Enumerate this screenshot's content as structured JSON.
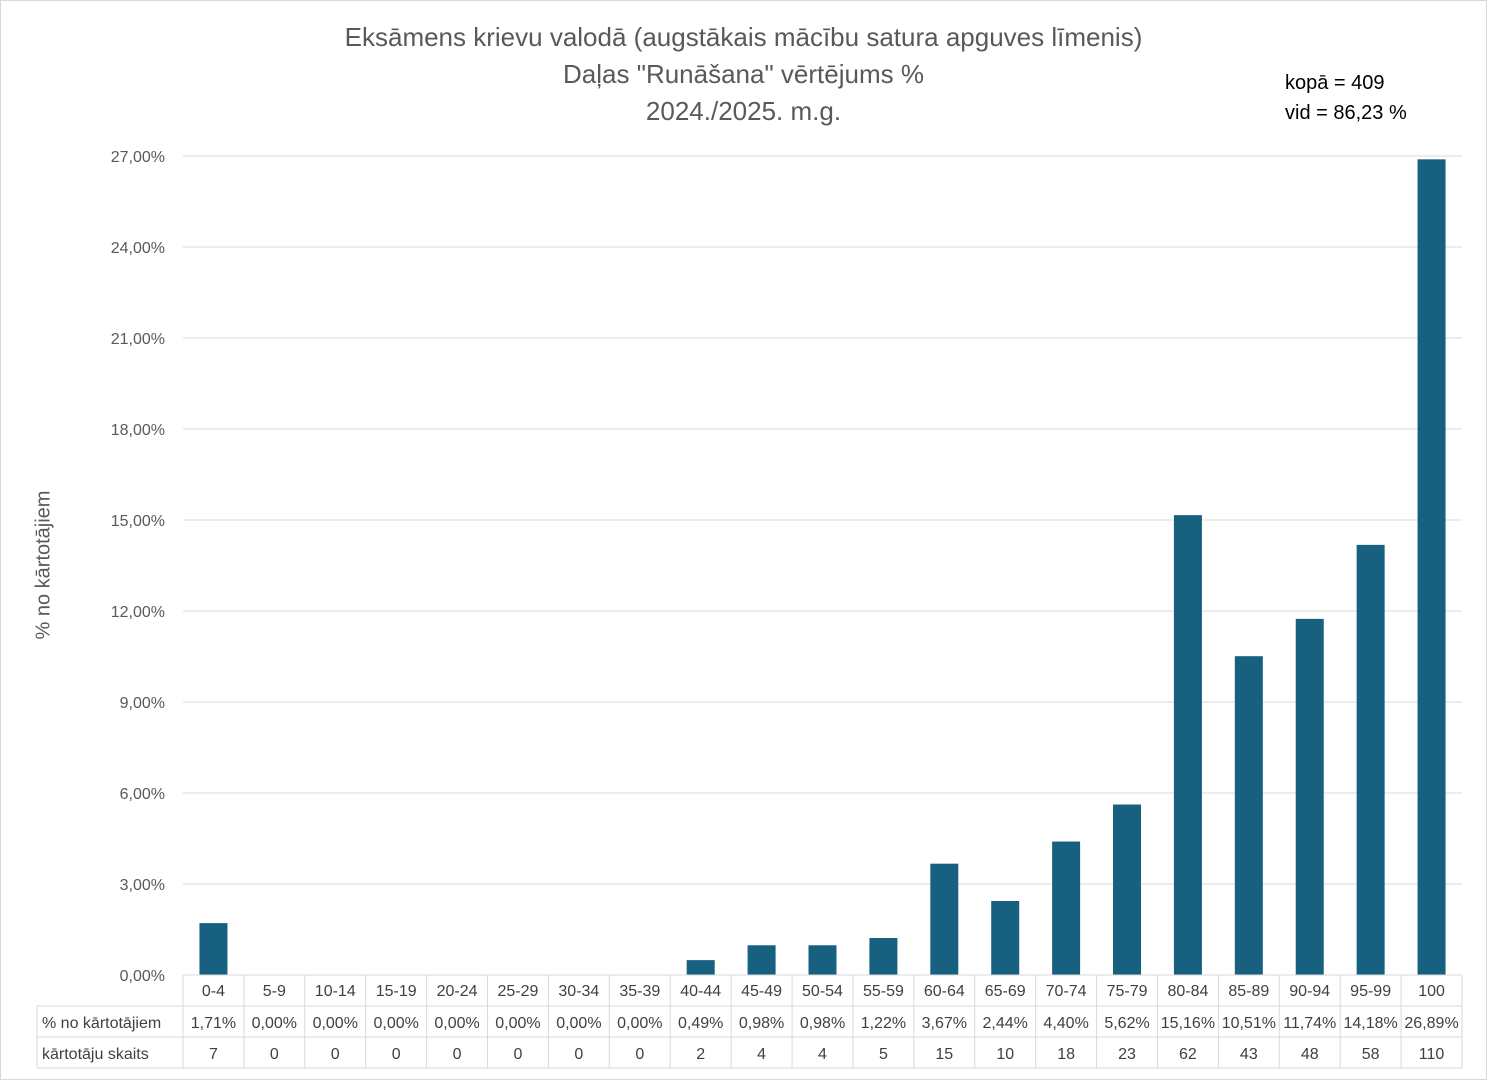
{
  "chart_data": {
    "type": "bar",
    "title": "Eksāmens krievu valodā (augstākais mācību satura apguves līmenis)",
    "subtitle": "Daļas \"Runāšana\" vērtējums %",
    "year": "2024./2025. m.g.",
    "stats": {
      "total": "kopā = 409",
      "average": "vid = 86,23 %"
    },
    "ylabel": "% no kārtotājiem",
    "ylim": [
      0,
      27
    ],
    "yticks": [
      "0,00%",
      "3,00%",
      "6,00%",
      "9,00%",
      "12,00%",
      "15,00%",
      "18,00%",
      "21,00%",
      "24,00%",
      "27,00%"
    ],
    "grid": true,
    "bar_color": "#17607f",
    "categories": [
      "0-4",
      "5-9",
      "10-14",
      "15-19",
      "20-24",
      "25-29",
      "30-34",
      "35-39",
      "40-44",
      "45-49",
      "50-54",
      "55-59",
      "60-64",
      "65-69",
      "70-74",
      "75-79",
      "80-84",
      "85-89",
      "90-94",
      "95-99",
      "100"
    ],
    "values": [
      1.71,
      0,
      0,
      0,
      0,
      0,
      0,
      0,
      0.49,
      0.98,
      0.98,
      1.22,
      3.67,
      2.44,
      4.4,
      5.62,
      15.16,
      10.51,
      11.74,
      14.18,
      26.89
    ],
    "table": {
      "rows": [
        {
          "label": "% no kārtotājiem",
          "cells": [
            "1,71%",
            "0,00%",
            "0,00%",
            "0,00%",
            "0,00%",
            "0,00%",
            "0,00%",
            "0,00%",
            "0,49%",
            "0,98%",
            "0,98%",
            "1,22%",
            "3,67%",
            "2,44%",
            "4,40%",
            "5,62%",
            "15,16%",
            "10,51%",
            "11,74%",
            "14,18%",
            "26,89%"
          ]
        },
        {
          "label": "kārtotāju skaits",
          "cells": [
            "7",
            "0",
            "0",
            "0",
            "0",
            "0",
            "0",
            "0",
            "2",
            "4",
            "4",
            "5",
            "15",
            "10",
            "18",
            "23",
            "62",
            "43",
            "48",
            "58",
            "110"
          ]
        }
      ]
    }
  }
}
